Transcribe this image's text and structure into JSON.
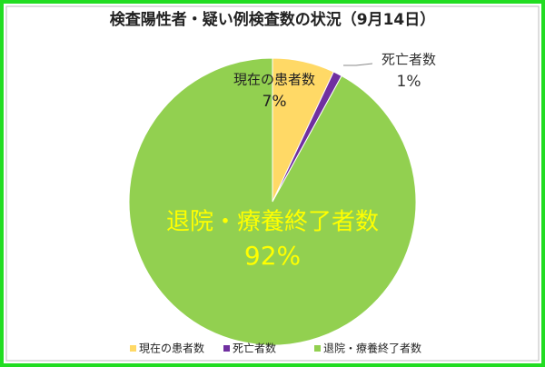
{
  "chart_data": {
    "type": "pie",
    "title": "検査陽性者・疑い例検査数の状況（9月14日）",
    "categories": [
      "現在の患者数",
      "死亡者数",
      "退院・療養終了者数"
    ],
    "values": [
      7,
      1,
      92
    ],
    "value_labels": [
      "7%",
      "1%",
      "92%"
    ],
    "colors": [
      "#ffd966",
      "#7030a0",
      "#92d050"
    ],
    "legend": "bottom"
  }
}
